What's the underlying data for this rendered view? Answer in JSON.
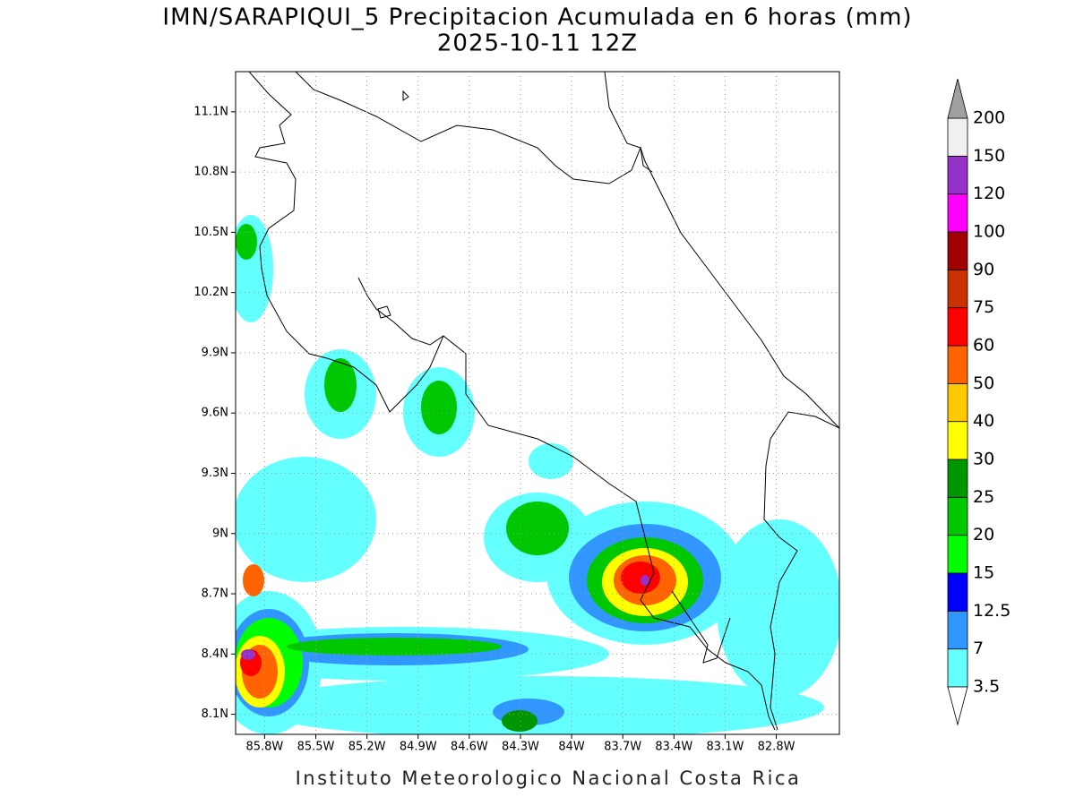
{
  "title": "IMN/SARAPIQUI_5 Precipitacion Acumulada en 6 horas (mm)",
  "subtitle": "2025-10-11 12Z",
  "map": {
    "xlim": [
      -85.97,
      -82.43
    ],
    "ylim": [
      8.0,
      11.3
    ],
    "grid": true,
    "xticks": [
      {
        "value": -85.8,
        "label": "85.8W"
      },
      {
        "value": -85.5,
        "label": "85.5W"
      },
      {
        "value": -85.2,
        "label": "85.2W"
      },
      {
        "value": -84.9,
        "label": "84.9W"
      },
      {
        "value": -84.6,
        "label": "84.6W"
      },
      {
        "value": -84.3,
        "label": "84.3W"
      },
      {
        "value": -84,
        "label": "84W"
      },
      {
        "value": -83.7,
        "label": "83.7W"
      },
      {
        "value": -83.4,
        "label": "83.4W"
      },
      {
        "value": -83.1,
        "label": "83.1W"
      },
      {
        "value": -82.8,
        "label": "82.8W"
      }
    ],
    "yticks": [
      {
        "value": 8.1,
        "label": "8.1N"
      },
      {
        "value": 8.4,
        "label": "8.4N"
      },
      {
        "value": 8.7,
        "label": "8.7N"
      },
      {
        "value": 9,
        "label": "9N"
      },
      {
        "value": 9.3,
        "label": "9.3N"
      },
      {
        "value": 9.6,
        "label": "9.6N"
      },
      {
        "value": 9.9,
        "label": "9.9N"
      },
      {
        "value": 10.2,
        "label": "10.2N"
      },
      {
        "value": 10.5,
        "label": "10.5N"
      },
      {
        "value": 10.8,
        "label": "10.8N"
      },
      {
        "value": 11.1,
        "label": "11.1N"
      }
    ]
  },
  "colorbar": {
    "levels": [
      3.5,
      7,
      12.5,
      15,
      20,
      25,
      30,
      40,
      50,
      60,
      75,
      90,
      100,
      120,
      150,
      200
    ],
    "colors": [
      "#64ffff",
      "#3296ff",
      "#0000ff",
      "#00ff00",
      "#00c800",
      "#009600",
      "#ffff00",
      "#ffc800",
      "#ff6400",
      "#ff0000",
      "#c83200",
      "#a00000",
      "#ff00ff",
      "#9632c8",
      "#f0f0f0"
    ],
    "under_color": "#ffffff",
    "over_color": "#a0a0a0"
  },
  "footer": "Instituto Meteorologico Nacional Costa Rica"
}
